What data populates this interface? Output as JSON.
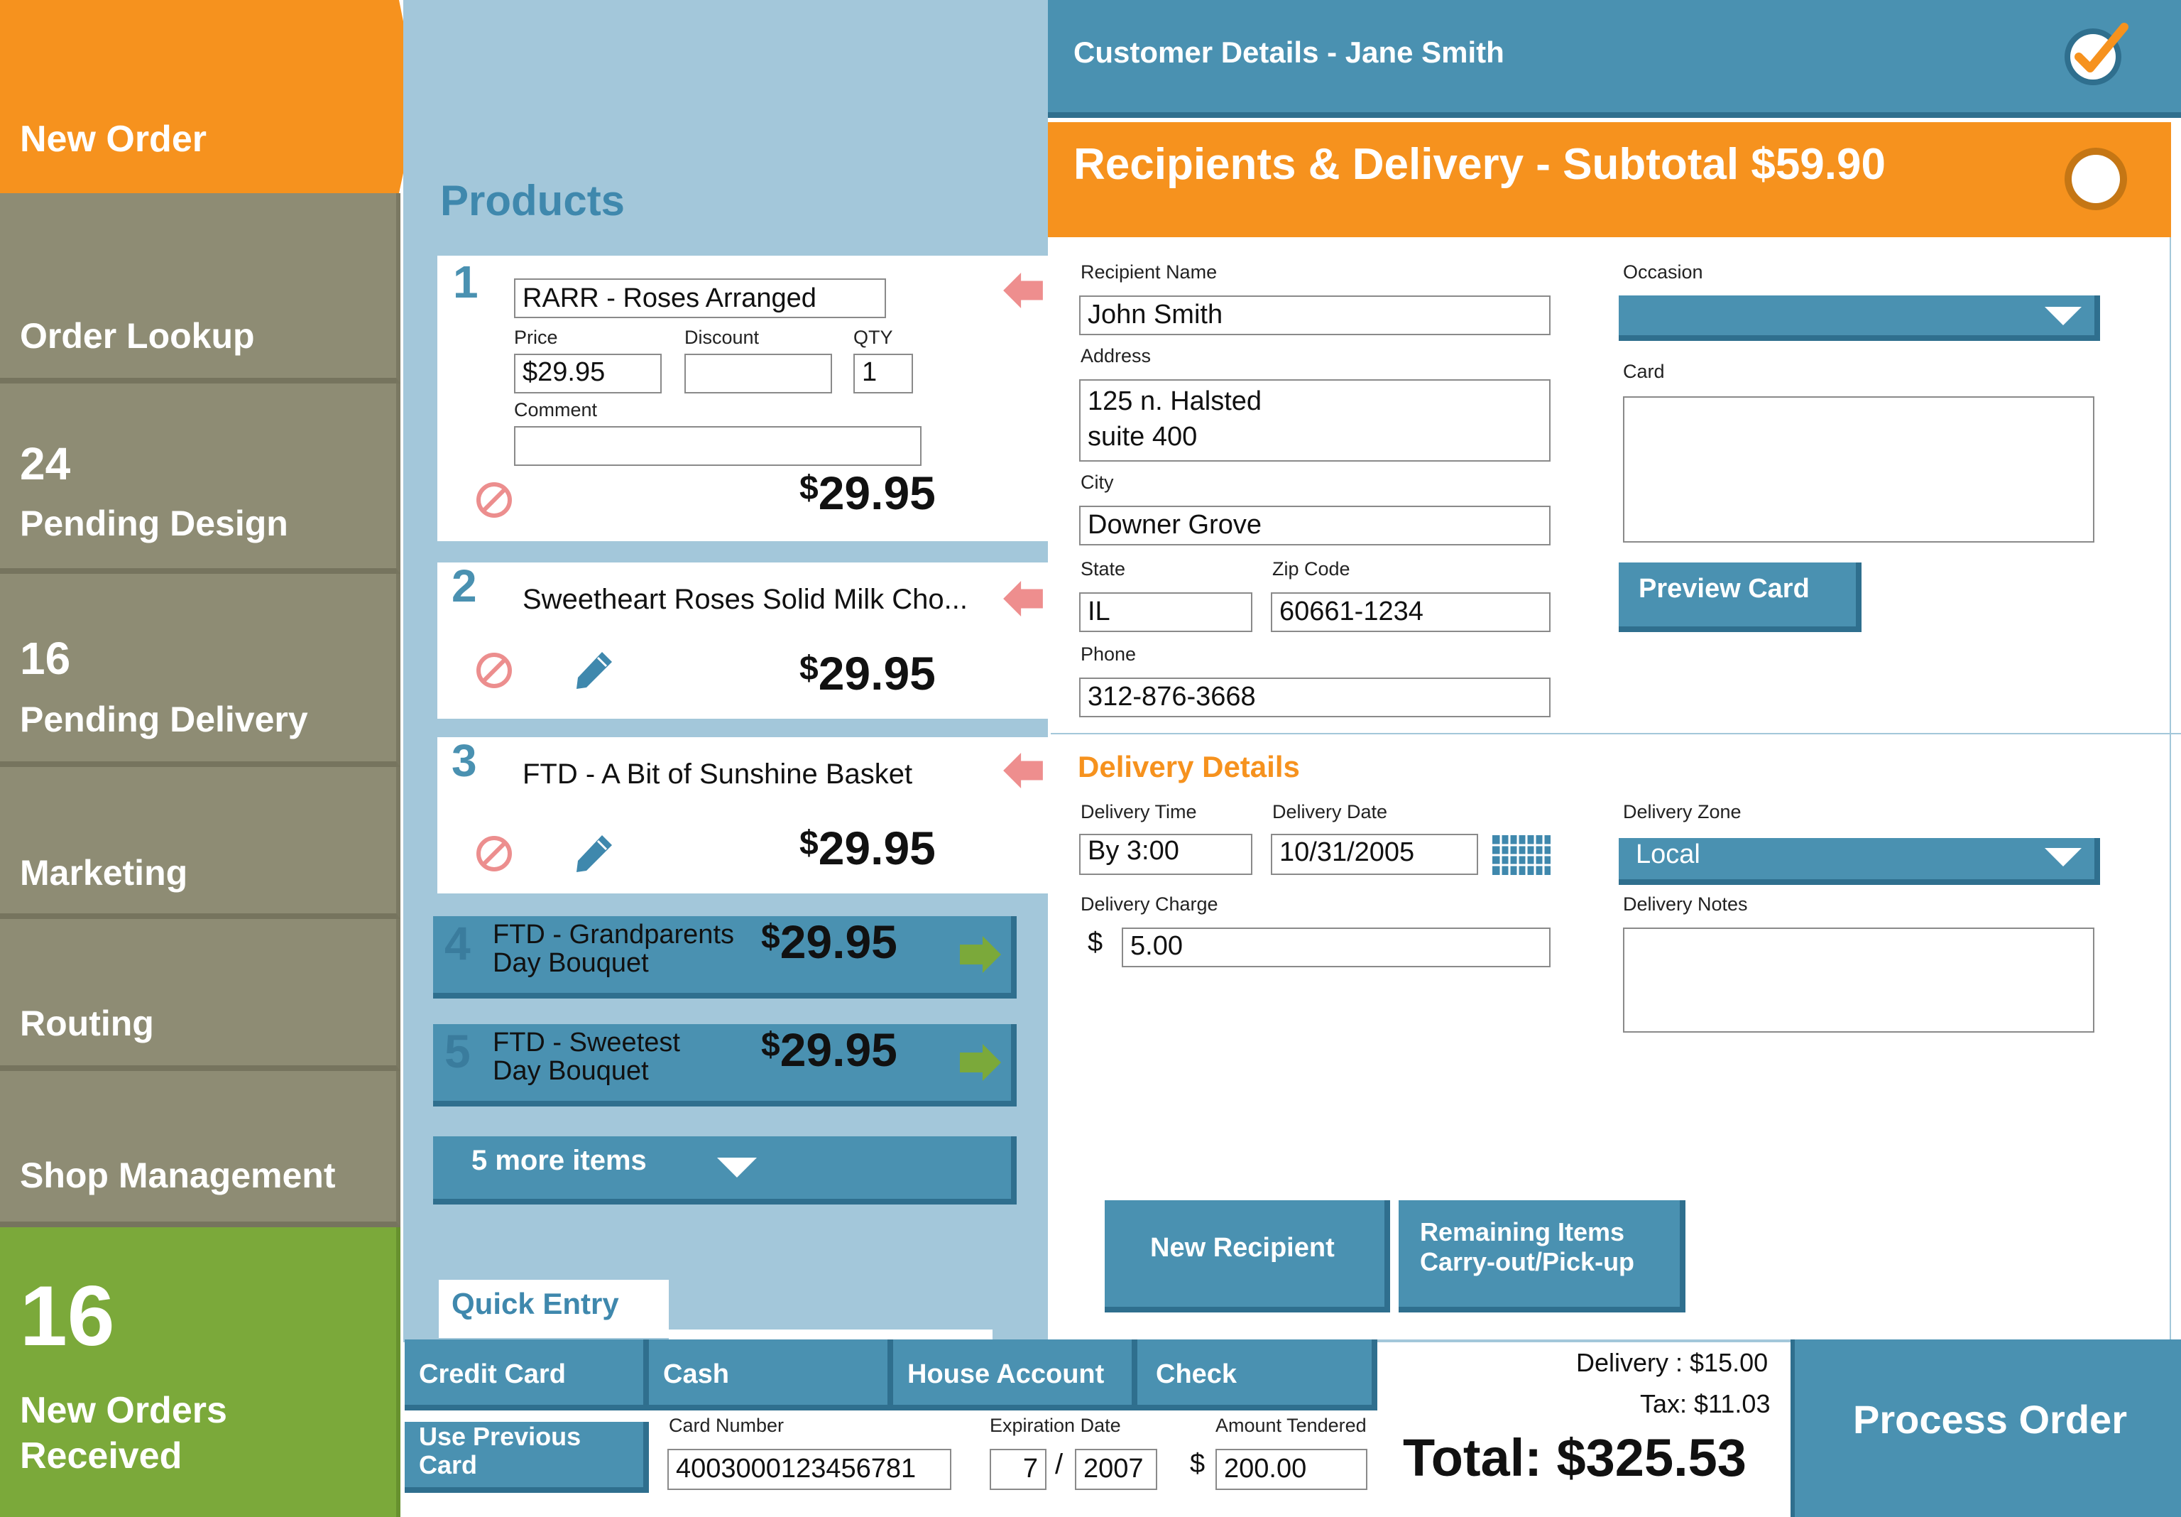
{
  "sidebar": {
    "new_order": "New Order",
    "order_lookup": "Order Lookup",
    "pending_design_count": "24",
    "pending_design": "Pending Design",
    "pending_delivery_count": "16",
    "pending_delivery": "Pending Delivery",
    "marketing": "Marketing",
    "routing": "Routing",
    "shop_management": "Shop Management",
    "new_orders_count": "16",
    "new_orders_line1": "New Orders",
    "new_orders_line2": "Received"
  },
  "products": {
    "title": "Products",
    "items": [
      {
        "num": "1",
        "name": "RARR - Roses Arranged",
        "price_label": "Price",
        "price": "$29.95",
        "discount_label": "Discount",
        "discount": "",
        "qty_label": "QTY",
        "qty": "1",
        "comment_label": "Comment",
        "comment": "",
        "total": "29.95"
      },
      {
        "num": "2",
        "name": "Sweetheart Roses Solid Milk Cho...",
        "total": "29.95"
      },
      {
        "num": "3",
        "name": "FTD - A Bit of Sunshine Basket",
        "total": "29.95"
      },
      {
        "num": "4",
        "name": "FTD - Grandparents\nDay Bouquet",
        "total": "29.95"
      },
      {
        "num": "5",
        "name": "FTD - Sweetest\nDay Bouquet",
        "total": "29.95"
      }
    ],
    "more_items": "5 more items",
    "currency": "$"
  },
  "quick_entry": {
    "title": "Quick Entry"
  },
  "customer": {
    "title": "Customer Details - Jane Smith"
  },
  "recipients": {
    "title": "Recipients & Delivery - Subtotal $59.90",
    "recipient_name_label": "Recipient Name",
    "recipient_name": "John Smith",
    "address_label": "Address",
    "address": "125 n. Halsted\nsuite 400",
    "city_label": "City",
    "city": "Downer Grove",
    "state_label": "State",
    "state": "IL",
    "zip_label": "Zip Code",
    "zip": "60661-1234",
    "phone_label": "Phone",
    "phone": "312-876-3668",
    "occasion_label": "Occasion",
    "occasion": "",
    "card_label": "Card",
    "card": "",
    "preview_card": "Preview Card"
  },
  "delivery": {
    "title": "Delivery Details",
    "time_label": "Delivery Time",
    "time": "By 3:00",
    "date_label": "Delivery Date",
    "date": "10/31/2005",
    "zone_label": "Delivery Zone",
    "zone": "Local",
    "charge_label": "Delivery Charge",
    "charge_currency": "$",
    "charge": "5.00",
    "notes_label": "Delivery Notes",
    "notes": "",
    "new_recipient": "New Recipient",
    "remaining_line1": "Remaining Items",
    "remaining_line2": "Carry-out/Pick-up"
  },
  "payment": {
    "credit_card": "Credit Card",
    "cash": "Cash",
    "house_account": "House Account",
    "check": "Check",
    "use_prev_line1": "Use Previous",
    "use_prev_line2": "Card",
    "card_number_label": "Card Number",
    "card_number": "4003000123456781",
    "exp_label": "Expiration Date",
    "exp_month": "7",
    "exp_sep": "/",
    "exp_year": "2007",
    "amount_label": "Amount Tendered",
    "amount_currency": "$",
    "amount": "200.00"
  },
  "totals": {
    "delivery": "Delivery : $15.00",
    "tax": "Tax: $11.03",
    "total": "Total: $325.53",
    "process_order": "Process Order"
  },
  "colors": {
    "orange": "#f6921e",
    "teal": "#4a91b1",
    "green": "#7ba93a",
    "olive": "#8e8c74",
    "light_blue": "#a3c7da"
  }
}
